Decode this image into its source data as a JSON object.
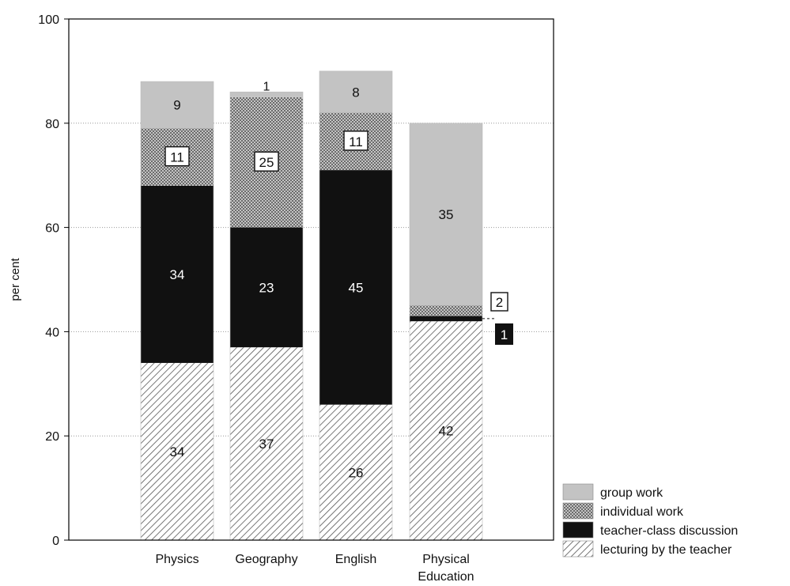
{
  "chart_data": {
    "type": "bar",
    "stacked": true,
    "ylabel": "per cent",
    "ylim": [
      0,
      100
    ],
    "yticks": [
      0,
      20,
      40,
      60,
      80,
      100
    ],
    "grid": "horizontal-dotted",
    "legend_position": "bottom-right",
    "categories": [
      [
        "Physics"
      ],
      [
        "Geography"
      ],
      [
        "English"
      ],
      [
        "Physical",
        "Education"
      ]
    ],
    "series": [
      {
        "name": "lecturing by the teacher",
        "pattern": "diagonal-hatch",
        "values": [
          34,
          37,
          26,
          42
        ],
        "labels": [
          "34",
          "37",
          "26",
          "42"
        ]
      },
      {
        "name": "teacher-class discussion",
        "color": "#111111",
        "values": [
          34,
          23,
          45,
          1
        ],
        "labels": [
          "34",
          "23",
          "45",
          "1"
        ]
      },
      {
        "name": "individual work",
        "pattern": "crosshatch",
        "values": [
          11,
          25,
          11,
          2
        ],
        "labels": [
          "11",
          "25",
          "11",
          "2"
        ]
      },
      {
        "name": "group work",
        "color": "#c3c3c3",
        "values": [
          9,
          1,
          8,
          35
        ],
        "labels": [
          "9",
          "1",
          "8",
          "35"
        ]
      }
    ],
    "legend_order": [
      "group work",
      "individual work",
      "teacher-class discussion",
      "lecturing by the teacher"
    ]
  }
}
